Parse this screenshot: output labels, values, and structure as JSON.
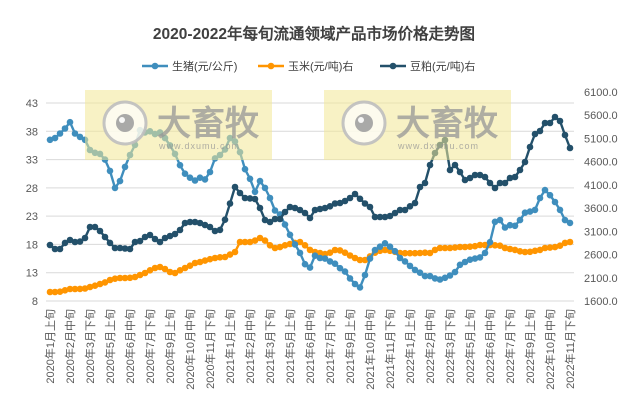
{
  "chart_data": {
    "type": "line",
    "title": "2020-2022年每旬流通领域产品市场价格走势图",
    "xlabel": "",
    "ylabel": "",
    "y_left": {
      "min": 8,
      "max": 43,
      "step": 5,
      "ticks": [
        "8",
        "13",
        "18",
        "23",
        "28",
        "33",
        "38",
        "43"
      ]
    },
    "y_right": {
      "min": 1600,
      "max": 6100,
      "step": 500,
      "ticks": [
        "1600.0",
        "2100.0",
        "2600.0",
        "3100.0",
        "3600.0",
        "4100.0",
        "4600.0",
        "5100.0",
        "5600.0",
        "6100.0"
      ]
    },
    "grid": true,
    "legend_position": "top",
    "x_tick_labels": [
      "2020年1月上旬",
      "2020年2月中旬",
      "2020年3月下旬",
      "2020年5月上旬",
      "2020年6月中旬",
      "2020年7月下旬",
      "2020年9月上旬",
      "2020年10月中旬",
      "2020年11月下旬",
      "2021年1月上旬",
      "2021年2月中旬",
      "2021年3月下旬",
      "2021年5月上旬",
      "2021年6月中旬",
      "2021年7月下旬",
      "2021年9月上旬",
      "2021年10月中旬",
      "2021年11月下旬",
      "2022年1月上旬",
      "2022年2月中旬",
      "2022年3月下旬",
      "2022年5月上旬",
      "2022年6月中旬",
      "2022年7月下旬",
      "2022年9月上旬",
      "2022年10月中旬",
      "2022年11月下旬"
    ],
    "x_tick_every": 4,
    "n_points": 105,
    "series": [
      {
        "name": "生猪(元/公斤)",
        "axis": "left",
        "color": "#3F8EBD",
        "values": [
          36.5,
          36.8,
          37.6,
          38.5,
          39.6,
          37.6,
          37.0,
          36.5,
          34.7,
          34.2,
          34.0,
          33.0,
          31.0,
          28.0,
          29.2,
          31.7,
          33.8,
          35.6,
          38.2,
          37.8,
          38.0,
          37.5,
          37.8,
          36.8,
          35.5,
          34.0,
          32.0,
          30.5,
          29.8,
          29.3,
          29.8,
          29.5,
          30.8,
          33.2,
          33.8,
          34.8,
          36.8,
          36.2,
          34.3,
          31.3,
          29.6,
          27.3,
          29.2,
          28.0,
          26.2,
          24.0,
          23.3,
          21.5,
          19.7,
          18.0,
          16.5,
          14.5,
          13.9,
          16.0,
          15.6,
          15.5,
          15.0,
          14.6,
          13.8,
          13.2,
          12.0,
          11.0,
          10.4,
          12.6,
          15.5,
          17.0,
          17.6,
          18.2,
          17.6,
          16.8,
          15.6,
          15.0,
          14.2,
          13.5,
          13.0,
          12.4,
          12.4,
          12.0,
          11.8,
          12.1,
          12.5,
          13.1,
          14.4,
          14.9,
          15.3,
          15.5,
          15.7,
          16.5,
          18.4,
          22.0,
          22.3,
          21.0,
          21.4,
          21.3,
          22.3,
          23.6,
          23.8,
          24.1,
          26.2,
          27.6,
          26.7,
          25.5,
          24.1,
          22.3,
          21.8
        ]
      },
      {
        "name": "玉米(元/吨)右",
        "axis": "right",
        "color": "#FF9500",
        "values": [
          1794,
          1794,
          1800,
          1830,
          1858,
          1858,
          1860,
          1870,
          1901,
          1930,
          1966,
          2000,
          2052,
          2080,
          2095,
          2095,
          2100,
          2117,
          2160,
          2203,
          2260,
          2310,
          2332,
          2289,
          2224,
          2203,
          2260,
          2310,
          2360,
          2418,
          2440,
          2470,
          2500,
          2526,
          2540,
          2547,
          2600,
          2655,
          2870,
          2870,
          2870,
          2900,
          2956,
          2900,
          2800,
          2741,
          2760,
          2800,
          2827,
          2850,
          2870,
          2800,
          2700,
          2655,
          2634,
          2610,
          2640,
          2698,
          2690,
          2640,
          2580,
          2526,
          2483,
          2483,
          2560,
          2640,
          2680,
          2698,
          2680,
          2660,
          2634,
          2630,
          2630,
          2630,
          2634,
          2640,
          2634,
          2700,
          2741,
          2741,
          2741,
          2750,
          2762,
          2762,
          2770,
          2780,
          2806,
          2806,
          2806,
          2800,
          2790,
          2741,
          2720,
          2700,
          2670,
          2655,
          2660,
          2680,
          2700,
          2741,
          2750,
          2760,
          2790,
          2850,
          2870
        ]
      },
      {
        "name": "豆粕(元/吨)右",
        "axis": "right",
        "color": "#23506A",
        "values": [
          2806,
          2720,
          2720,
          2850,
          2913,
          2870,
          2880,
          2956,
          3193,
          3193,
          3107,
          2978,
          2850,
          2741,
          2741,
          2730,
          2720,
          2870,
          2890,
          2978,
          3021,
          2935,
          2870,
          2956,
          3000,
          3042,
          3129,
          3279,
          3300,
          3300,
          3279,
          3236,
          3193,
          3107,
          3130,
          3350,
          3700,
          4054,
          3925,
          3818,
          3810,
          3796,
          3602,
          3344,
          3300,
          3365,
          3365,
          3516,
          3624,
          3602,
          3559,
          3495,
          3387,
          3559,
          3580,
          3602,
          3640,
          3700,
          3710,
          3753,
          3818,
          3904,
          3800,
          3700,
          3624,
          3409,
          3409,
          3409,
          3430,
          3495,
          3559,
          3559,
          3640,
          3710,
          4054,
          4140,
          4528,
          4786,
          4959,
          5066,
          4420,
          4528,
          4377,
          4205,
          4248,
          4313,
          4313,
          4270,
          4140,
          4033,
          4140,
          4140,
          4248,
          4270,
          4420,
          4593,
          4916,
          5195,
          5260,
          5432,
          5432,
          5561,
          5475,
          5174,
          4894
        ]
      }
    ]
  },
  "watermark": {
    "brand": "大畜牧",
    "url": "www.dxumu.com"
  }
}
